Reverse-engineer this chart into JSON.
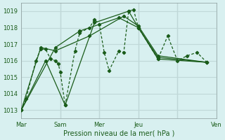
{
  "title": "",
  "xlabel": "Pression niveau de la mer( hPa )",
  "ylabel": "",
  "bg_color": "#d8f0f0",
  "grid_color": "#c0d8d8",
  "line_color": "#1a5c1a",
  "marker_color": "#1a5c1a",
  "ylim": [
    1012.5,
    1019.5
  ],
  "yticks": [
    1013,
    1014,
    1015,
    1016,
    1017,
    1018,
    1019
  ],
  "day_positions": [
    0,
    4,
    8,
    12,
    16,
    20
  ],
  "day_labels": [
    "Mar",
    "Sam",
    "Mer",
    "Jeu",
    "",
    "Ven"
  ],
  "series": [
    [
      0.0,
      1013.0,
      0.5,
      1013.7,
      1.5,
      1016.0,
      2.0,
      1016.7,
      2.5,
      1016.7,
      3.0,
      1016.1,
      3.5,
      1016.0,
      3.8,
      1015.8,
      4.0,
      1015.3,
      4.5,
      1013.3,
      5.5,
      1016.6,
      6.0,
      1017.7,
      7.0,
      1018.0,
      7.5,
      1018.5,
      8.0,
      1018.2,
      8.5,
      1016.5,
      9.0,
      1015.4,
      10.0,
      1016.6,
      10.5,
      1016.5,
      11.0,
      1019.0,
      11.5,
      1019.1,
      12.0,
      1018.0,
      14.0,
      1016.1,
      15.0,
      1017.5,
      16.0,
      1016.0,
      17.0,
      1016.3,
      18.0,
      1016.5,
      19.0,
      1015.9
    ],
    [
      0.0,
      1013.0,
      2.5,
      1016.0,
      4.5,
      1013.3,
      7.5,
      1018.3,
      11.0,
      1019.0,
      12.0,
      1018.0,
      14.0,
      1016.1,
      19.0,
      1015.9
    ],
    [
      0.0,
      1013.0,
      2.0,
      1016.8,
      3.5,
      1016.6,
      7.0,
      1017.5,
      10.5,
      1018.7,
      12.0,
      1018.1,
      14.0,
      1016.3,
      19.0,
      1015.9
    ],
    [
      0.0,
      1013.0,
      3.5,
      1016.8,
      6.0,
      1017.8,
      10.0,
      1018.6,
      12.0,
      1018.0,
      14.0,
      1016.2,
      19.0,
      1015.9
    ]
  ],
  "vline_positions": [
    4,
    8,
    12,
    16,
    20
  ],
  "figsize": [
    3.2,
    2.0
  ],
  "dpi": 100
}
